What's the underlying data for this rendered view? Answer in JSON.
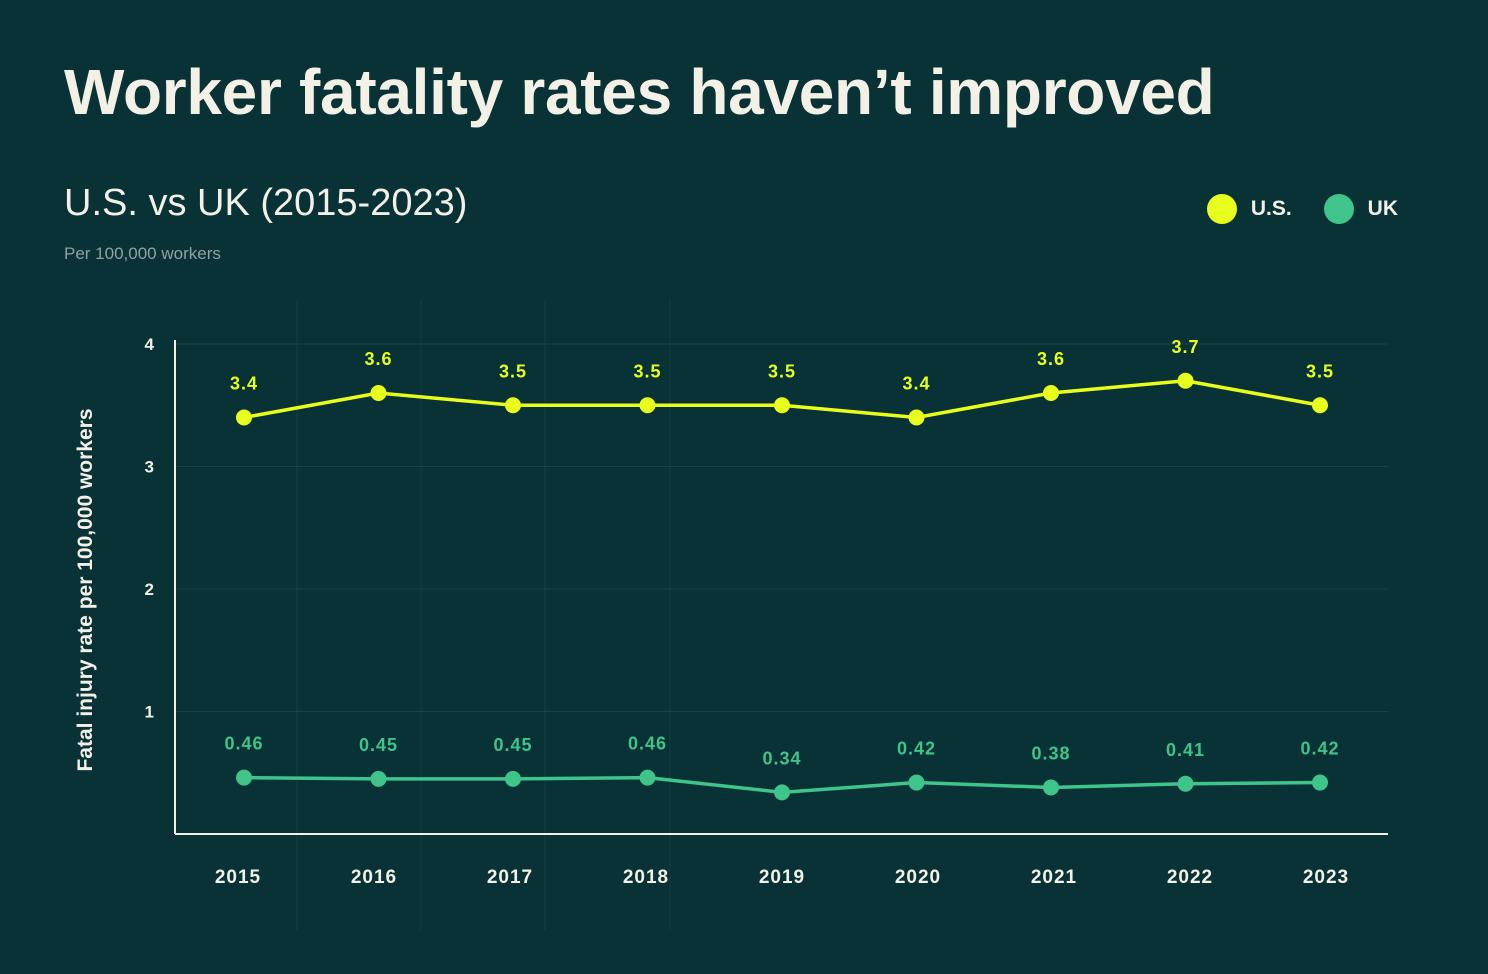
{
  "title": "Worker fatality rates haven’t improved",
  "subtitle": "U.S. vs UK (2015-2023)",
  "note": "Per 100,000 workers",
  "colors": {
    "background": "#083236",
    "us": "#e8ff1e",
    "uk": "#3fc48a",
    "text": "#f3f1e6"
  },
  "chart_data": {
    "type": "line",
    "ylabel": "Fatal injury rate per 100,000 workers",
    "xlabel": "",
    "ylim": [
      0,
      4
    ],
    "yticks": [
      "1",
      "2",
      "3",
      "4"
    ],
    "categories": [
      "2015",
      "2016",
      "2017",
      "2018",
      "2019",
      "2020",
      "2021",
      "2022",
      "2023"
    ],
    "legend_placement": "top-right",
    "grid": true,
    "series": [
      {
        "name": "U.S.",
        "color": "#e8ff1e",
        "values": [
          3.4,
          3.6,
          3.5,
          3.5,
          3.5,
          3.4,
          3.6,
          3.7,
          3.5
        ],
        "labels": [
          "3.4",
          "3.6",
          "3.5",
          "3.5",
          "3.5",
          "3.4",
          "3.6",
          "3.7",
          "3.5"
        ]
      },
      {
        "name": "UK",
        "color": "#3fc48a",
        "values": [
          0.46,
          0.45,
          0.45,
          0.46,
          0.34,
          0.42,
          0.38,
          0.41,
          0.42
        ],
        "labels": [
          "0.46",
          "0.45",
          "0.45",
          "0.46",
          "0.34",
          "0.42",
          "0.38",
          "0.41",
          "0.42"
        ]
      }
    ]
  }
}
